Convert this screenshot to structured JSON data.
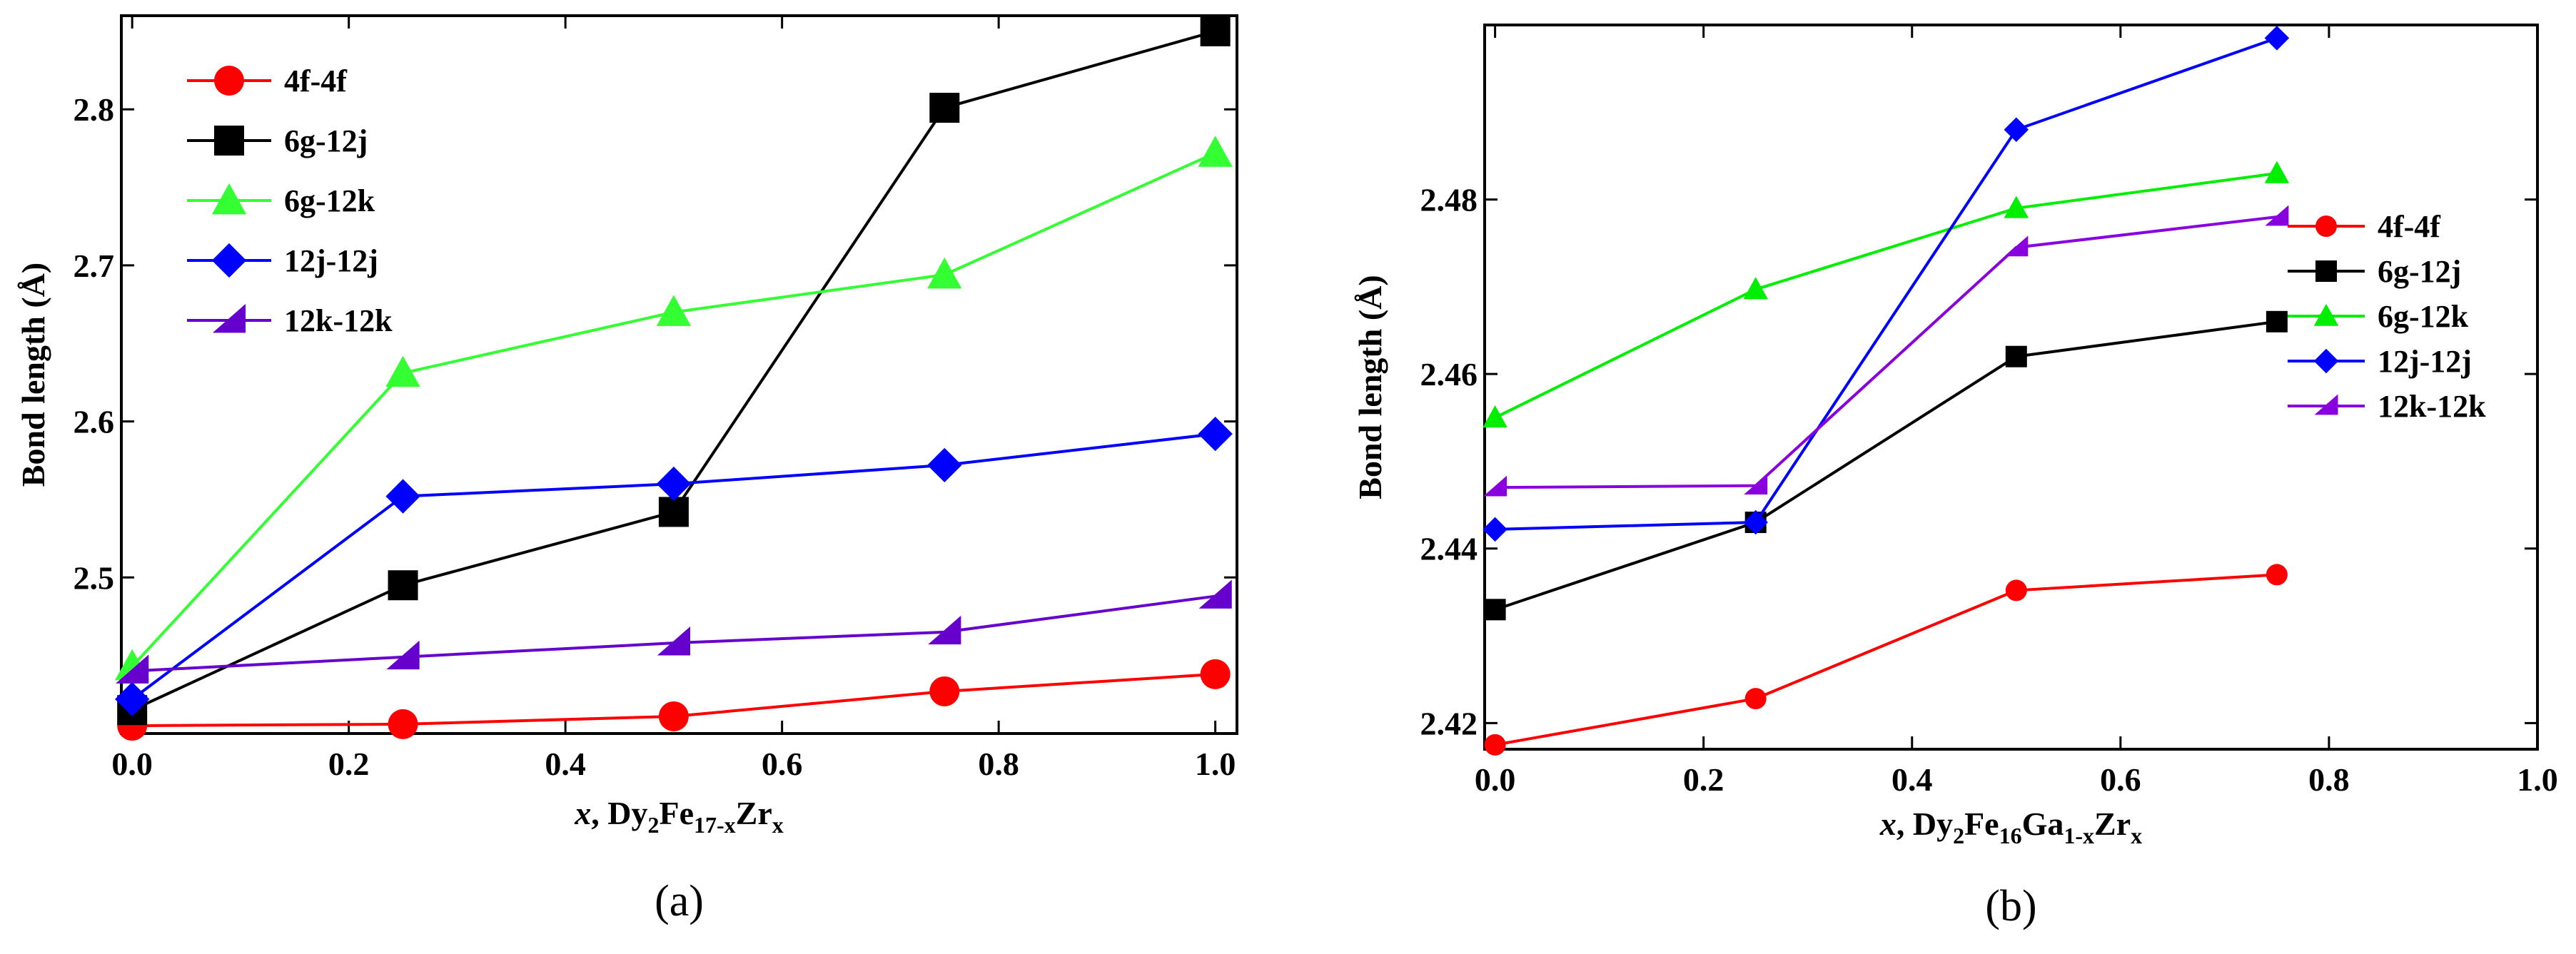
{
  "chart_data": [
    {
      "type": "line",
      "panel_label": "(a)",
      "ylabel": "Bond length (Å)",
      "xlabel": {
        "italic": "x",
        "sep": ",",
        "formula": [
          [
            "Dy",
            ""
          ],
          [
            "2",
            "sub"
          ],
          [
            "Fe",
            ""
          ],
          [
            "17-x",
            "sub"
          ],
          [
            "Zr",
            ""
          ],
          [
            "x",
            "sub"
          ]
        ]
      },
      "xlim": [
        -0.01,
        1.02
      ],
      "ylim": [
        2.4,
        2.86
      ],
      "xticks": [
        "0.0",
        "0.2",
        "0.4",
        "0.6",
        "0.8",
        "1.0"
      ],
      "xtick_values": [
        0,
        0.2,
        0.4,
        0.6,
        0.8,
        1.0
      ],
      "yticks": [
        "2.5",
        "2.6",
        "2.7",
        "2.8"
      ],
      "ytick_values": [
        2.5,
        2.6,
        2.7,
        2.8
      ],
      "legend_position": "top-left",
      "series": [
        {
          "name": "4f-4f",
          "color": "#ff0000",
          "marker": "circle",
          "x": [
            0,
            0.25,
            0.5,
            0.75,
            1.0
          ],
          "y": [
            2.405,
            2.406,
            2.411,
            2.427,
            2.438
          ]
        },
        {
          "name": "6g-12j",
          "color": "#000000",
          "marker": "square",
          "x": [
            0,
            0.25,
            0.5,
            0.75,
            1.0
          ],
          "y": [
            2.415,
            2.495,
            2.542,
            2.801,
            2.85
          ]
        },
        {
          "name": "6g-12k",
          "color": "#33ff33",
          "marker": "triangle",
          "x": [
            0,
            0.25,
            0.5,
            0.75,
            1.0
          ],
          "y": [
            2.443,
            2.631,
            2.67,
            2.694,
            2.772
          ]
        },
        {
          "name": "12j-12j",
          "color": "#0000ff",
          "marker": "diamond",
          "x": [
            0,
            0.25,
            0.5,
            0.75,
            1.0
          ],
          "y": [
            2.422,
            2.552,
            2.56,
            2.572,
            2.592
          ]
        },
        {
          "name": "12k-12k",
          "color": "#6600cc",
          "marker": "halftri",
          "x": [
            0,
            0.25,
            0.5,
            0.75,
            1.0
          ],
          "y": [
            2.44,
            2.449,
            2.458,
            2.465,
            2.488
          ]
        }
      ]
    },
    {
      "type": "line",
      "panel_label": "(b)",
      "ylabel": "Bond length (Å)",
      "xlabel": {
        "italic": "x",
        "sep": ",",
        "formula": [
          [
            "Dy",
            ""
          ],
          [
            "2",
            "sub"
          ],
          [
            "Fe",
            ""
          ],
          [
            "16",
            "sub"
          ],
          [
            "Ga",
            ""
          ],
          [
            "1-x",
            "sub"
          ],
          [
            "Zr",
            ""
          ],
          [
            "x",
            "sub"
          ]
        ]
      },
      "xlim": [
        -0.01,
        1.0
      ],
      "ylim": [
        2.417,
        2.5
      ],
      "xticks": [
        "0.0",
        "0.2",
        "0.4",
        "0.6",
        "0.8",
        "1.0"
      ],
      "xtick_values": [
        0,
        0.2,
        0.4,
        0.6,
        0.8,
        1.0
      ],
      "yticks": [
        "2.42",
        "2.44",
        "2.46",
        "2.48"
      ],
      "ytick_values": [
        2.42,
        2.44,
        2.46,
        2.48
      ],
      "legend_position": "center-right",
      "series": [
        {
          "name": "4f-4f",
          "color": "#ff0000",
          "marker": "circle",
          "x": [
            0,
            0.25,
            0.5,
            0.75
          ],
          "y": [
            2.4175,
            2.4228,
            2.4352,
            2.437
          ]
        },
        {
          "name": "6g-12j",
          "color": "#000000",
          "marker": "square",
          "x": [
            0,
            0.25,
            0.5,
            0.75
          ],
          "y": [
            2.433,
            2.443,
            2.462,
            2.466
          ]
        },
        {
          "name": "6g-12k",
          "color": "#00ee00",
          "marker": "triangle",
          "x": [
            0,
            0.25,
            0.5,
            0.75
          ],
          "y": [
            2.455,
            2.4697,
            2.479,
            2.483
          ]
        },
        {
          "name": "12j-12j",
          "color": "#0000ff",
          "marker": "diamond",
          "x": [
            0,
            0.25,
            0.5,
            0.75
          ],
          "y": [
            2.4422,
            2.443,
            2.488,
            2.4985
          ]
        },
        {
          "name": "12k-12k",
          "color": "#8800dd",
          "marker": "halftri",
          "x": [
            0,
            0.25,
            0.5,
            0.75
          ],
          "y": [
            2.447,
            2.4472,
            2.4745,
            2.478
          ]
        }
      ]
    }
  ]
}
